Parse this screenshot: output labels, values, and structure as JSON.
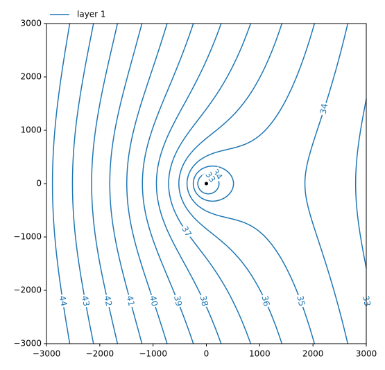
{
  "chart_data": {
    "type": "contour",
    "legend": "layer 1",
    "legend_loc": "upper left",
    "color": "#1f77b4",
    "levels": [
      33,
      34,
      35,
      36,
      37,
      38,
      39,
      40,
      41,
      42,
      43,
      44
    ],
    "markers": {
      "x": [
        0
      ],
      "y": [
        0
      ],
      "color": "#000000"
    },
    "xlim": [
      -3000,
      3000
    ],
    "ylim": [
      -3000,
      3000
    ],
    "xticks": [
      {
        "value": -3000,
        "label": "−3000"
      },
      {
        "value": -2000,
        "label": "−2000"
      },
      {
        "value": -1000,
        "label": "−1000"
      },
      0,
      1000,
      2000,
      3000
    ],
    "yticks": [
      {
        "value": -3000,
        "label": "−3000"
      },
      {
        "value": -2000,
        "label": "−2000"
      },
      {
        "value": -1000,
        "label": "−1000"
      },
      0,
      1000,
      2000,
      3000
    ]
  }
}
